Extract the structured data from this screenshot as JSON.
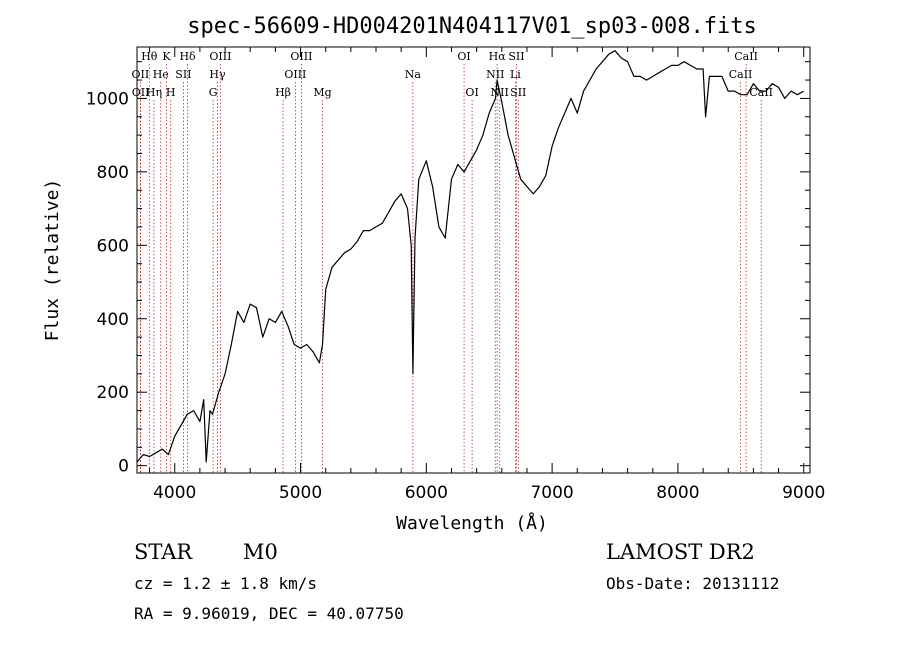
{
  "chart_data": {
    "type": "line",
    "title": "spec-56609-HD004201N404117V01_sp03-008.fits",
    "xlabel": "Wavelength (Å)",
    "ylabel": "Flux (relative)",
    "xlim": [
      3700,
      9050
    ],
    "ylim": [
      -20,
      1140
    ],
    "xticks": [
      4000,
      5000,
      6000,
      7000,
      8000,
      9000
    ],
    "yticks": [
      0,
      200,
      400,
      600,
      800,
      1000
    ],
    "xtick_labels": [
      "4000",
      "5000",
      "6000",
      "7000",
      "8000",
      "9000"
    ],
    "ytick_labels": [
      "0",
      "200",
      "400",
      "600",
      "800",
      "1000"
    ],
    "grid": false,
    "series": [
      {
        "color": "#000000",
        "x": [
          3700,
          3750,
          3800,
          3850,
          3900,
          3950,
          4000,
          4050,
          4100,
          4150,
          4200,
          4230,
          4250,
          4280,
          4300,
          4350,
          4400,
          4450,
          4500,
          4550,
          4600,
          4650,
          4700,
          4750,
          4800,
          4850,
          4900,
          4950,
          5000,
          5050,
          5100,
          5150,
          5175,
          5200,
          5250,
          5300,
          5350,
          5400,
          5450,
          5500,
          5550,
          5600,
          5650,
          5700,
          5750,
          5800,
          5850,
          5880,
          5893,
          5910,
          5940,
          6000,
          6050,
          6100,
          6150,
          6200,
          6250,
          6300,
          6350,
          6400,
          6450,
          6500,
          6550,
          6563,
          6600,
          6650,
          6700,
          6750,
          6800,
          6850,
          6900,
          6950,
          7000,
          7050,
          7100,
          7150,
          7200,
          7250,
          7300,
          7350,
          7400,
          7450,
          7500,
          7550,
          7600,
          7650,
          7700,
          7750,
          7800,
          7850,
          7900,
          7950,
          8000,
          8050,
          8100,
          8150,
          8200,
          8220,
          8250,
          8300,
          8350,
          8400,
          8450,
          8500,
          8550,
          8600,
          8650,
          8700,
          8750,
          8800,
          8850,
          8900,
          8950,
          9000
        ],
        "y": [
          10,
          30,
          25,
          35,
          45,
          30,
          80,
          110,
          140,
          150,
          120,
          180,
          10,
          150,
          140,
          200,
          250,
          330,
          420,
          390,
          440,
          430,
          350,
          400,
          390,
          420,
          380,
          330,
          320,
          330,
          310,
          280,
          330,
          480,
          540,
          560,
          580,
          590,
          610,
          640,
          640,
          650,
          660,
          690,
          720,
          740,
          700,
          600,
          250,
          620,
          780,
          830,
          760,
          650,
          620,
          780,
          820,
          800,
          830,
          860,
          900,
          960,
          1000,
          1050,
          990,
          900,
          840,
          780,
          760,
          740,
          760,
          790,
          870,
          920,
          960,
          1000,
          960,
          1020,
          1050,
          1080,
          1100,
          1120,
          1130,
          1110,
          1100,
          1060,
          1060,
          1050,
          1060,
          1070,
          1080,
          1090,
          1090,
          1100,
          1090,
          1080,
          1080,
          950,
          1060,
          1060,
          1060,
          1020,
          1020,
          1010,
          1010,
          1040,
          1020,
          1020,
          1040,
          1030,
          1000,
          1020,
          1010,
          1020
        ]
      }
    ],
    "spectral_lines": [
      {
        "label": "Hθ",
        "x": 3798,
        "row": 0
      },
      {
        "label": "K",
        "x": 3934,
        "row": 0
      },
      {
        "label": "Hδ",
        "x": 4102,
        "row": 0
      },
      {
        "label": "OIII",
        "x": 4363,
        "row": 0
      },
      {
        "label": "OIII",
        "x": 5007,
        "row": 0
      },
      {
        "label": "OI",
        "x": 6300,
        "row": 0
      },
      {
        "label": "Hα",
        "x": 6563,
        "row": 0
      },
      {
        "label": "SII",
        "x": 6717,
        "row": 0
      },
      {
        "label": "CaII",
        "x": 8542,
        "row": 0
      },
      {
        "label": "OII",
        "x": 3727,
        "row": 1
      },
      {
        "label": "He",
        "x": 3889,
        "row": 1
      },
      {
        "label": "SII",
        "x": 4069,
        "row": 1
      },
      {
        "label": "Hγ",
        "x": 4340,
        "row": 1
      },
      {
        "label": "OIII",
        "x": 4959,
        "row": 1
      },
      {
        "label": "Na",
        "x": 5893,
        "row": 1
      },
      {
        "label": "NII",
        "x": 6548,
        "row": 1
      },
      {
        "label": "Li",
        "x": 6708,
        "row": 1
      },
      {
        "label": "CaII",
        "x": 8498,
        "row": 1
      },
      {
        "label": "OII",
        "x": 3729,
        "row": 2
      },
      {
        "label": "Hη",
        "x": 3835,
        "row": 2
      },
      {
        "label": "H",
        "x": 3968,
        "row": 2
      },
      {
        "label": "G",
        "x": 4305,
        "row": 2
      },
      {
        "label": "Hβ",
        "x": 4861,
        "row": 2
      },
      {
        "label": "Mg",
        "x": 5175,
        "row": 2
      },
      {
        "label": "OI",
        "x": 6364,
        "row": 2
      },
      {
        "label": "NII",
        "x": 6583,
        "row": 2
      },
      {
        "label": "SII",
        "x": 6731,
        "row": 2
      },
      {
        "label": "CaII",
        "x": 8662,
        "row": 2
      }
    ]
  },
  "info": {
    "object_class": "STAR",
    "subclass": "M0",
    "survey": "LAMOST DR2",
    "cz": "cz = 1.2 ± 1.8 km/s",
    "obs_date": "Obs-Date: 20131112",
    "radec": "RA =   9.96019, DEC =  40.07750"
  }
}
